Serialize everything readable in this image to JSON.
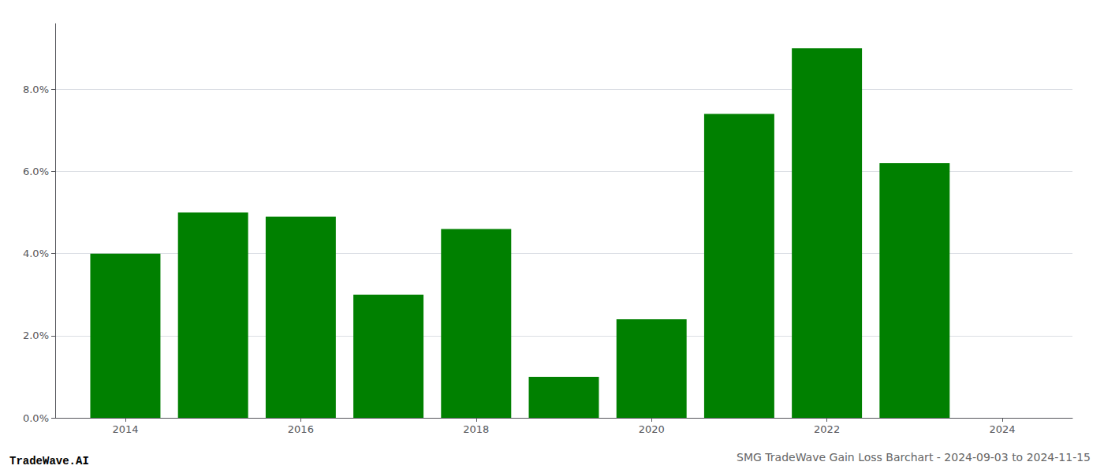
{
  "chart_data": {
    "type": "bar",
    "title": "SMG TradeWave Gain Loss Barchart - 2024-09-03 to 2024-11-15",
    "annotations": [
      "TradeWave.AI"
    ],
    "x": [
      2014,
      2015,
      2016,
      2017,
      2018,
      2019,
      2020,
      2021,
      2022,
      2023
    ],
    "values": [
      0.04,
      0.05,
      0.049,
      0.03,
      0.046,
      0.01,
      0.024,
      0.074,
      0.09,
      0.062
    ],
    "color": "#008000",
    "xlim": [
      2013.2,
      2024.8
    ],
    "xticks": [
      2014,
      2016,
      2018,
      2020,
      2022,
      2024
    ],
    "ylim": [
      0,
      0.096
    ],
    "yticks": [
      {
        "value": 0.0,
        "label": "0.0%"
      },
      {
        "value": 0.02,
        "label": "2.0%"
      },
      {
        "value": 0.04,
        "label": "4.0%"
      },
      {
        "value": 0.06,
        "label": "6.0%"
      },
      {
        "value": 0.08,
        "label": "8.0%"
      }
    ],
    "grid": true
  }
}
